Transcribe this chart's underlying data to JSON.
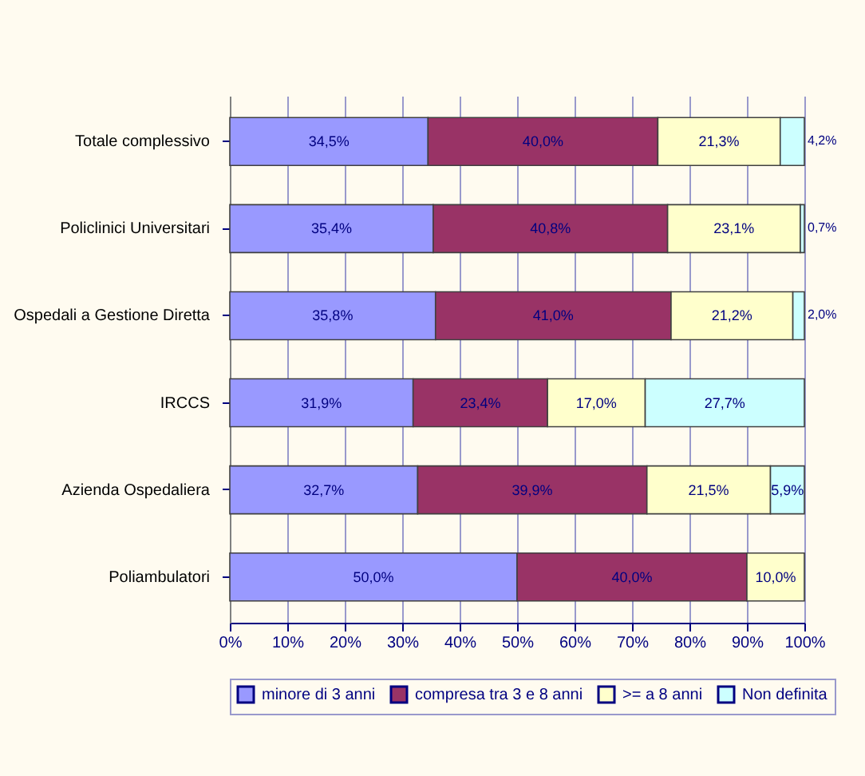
{
  "chart_data": {
    "type": "bar",
    "orientation": "horizontal",
    "stacked": true,
    "categories": [
      "Totale complessivo",
      "Policlinici Universitari",
      "Ospedali a Gestione Diretta",
      "IRCCS",
      "Azienda Ospedaliera",
      "Poliambulatori"
    ],
    "series": [
      {
        "name": "minore di 3 anni",
        "color": "#9999ff",
        "values": [
          34.5,
          35.4,
          35.8,
          31.9,
          32.7,
          50.0
        ],
        "value_labels": [
          "34,5%",
          "35,4%",
          "35,8%",
          "31,9%",
          "32,7%",
          "50,0%"
        ]
      },
      {
        "name": "compresa tra 3 e 8 anni",
        "color": "#993366",
        "values": [
          40.0,
          40.8,
          41.0,
          23.4,
          39.9,
          40.0
        ],
        "value_labels": [
          "40,0%",
          "40,8%",
          "41,0%",
          "23,4%",
          "39,9%",
          "40,0%"
        ]
      },
      {
        "name": ">= a 8 anni",
        "color": "#ffffcc",
        "values": [
          21.3,
          23.1,
          21.2,
          17.0,
          21.5,
          10.0
        ],
        "value_labels": [
          "21,3%",
          "23,1%",
          "21,2%",
          "17,0%",
          "21,5%",
          "10,0%"
        ]
      },
      {
        "name": "Non definita",
        "color": "#ccffff",
        "values": [
          4.2,
          0.7,
          2.0,
          27.7,
          5.9,
          null
        ],
        "value_labels": [
          "4,2%",
          "0,7%",
          "2,0%",
          "27,7%",
          "5,9%",
          null
        ]
      }
    ],
    "xlim": [
      0,
      100
    ],
    "xticks": [
      {
        "value": 0,
        "label": "0%"
      },
      {
        "value": 10,
        "label": "10%"
      },
      {
        "value": 20,
        "label": "20%"
      },
      {
        "value": 30,
        "label": "30%"
      },
      {
        "value": 40,
        "label": "40%"
      },
      {
        "value": 50,
        "label": "50%"
      },
      {
        "value": 60,
        "label": "60%"
      },
      {
        "value": 70,
        "label": "70%"
      },
      {
        "value": 80,
        "label": "80%"
      },
      {
        "value": 90,
        "label": "90%"
      },
      {
        "value": 100,
        "label": "100%"
      }
    ],
    "grid": "x",
    "legend": "bottom"
  }
}
